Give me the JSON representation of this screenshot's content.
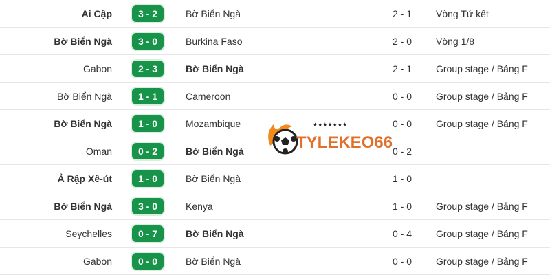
{
  "matches": [
    {
      "home": "Ai Cập",
      "score": "3 - 2",
      "away": "Bờ Biển Ngà",
      "agg": "2 - 1",
      "stage": "Vòng Tứ kết",
      "bold": "home"
    },
    {
      "home": "Bờ Biển Ngà",
      "score": "3 - 0",
      "away": "Burkina Faso",
      "agg": "2 - 0",
      "stage": "Vòng 1/8",
      "bold": "home"
    },
    {
      "home": "Gabon",
      "score": "2 - 3",
      "away": "Bờ Biển Ngà",
      "agg": "2 - 1",
      "stage": "Group stage / Bảng F",
      "bold": "away"
    },
    {
      "home": "Bờ Biển Ngà",
      "score": "1 - 1",
      "away": "Cameroon",
      "agg": "0 - 0",
      "stage": "Group stage / Bảng F",
      "bold": ""
    },
    {
      "home": "Bờ Biển Ngà",
      "score": "1 - 0",
      "away": "Mozambique",
      "agg": "0 - 0",
      "stage": "Group stage / Bảng F",
      "bold": "home"
    },
    {
      "home": "Oman",
      "score": "0 - 2",
      "away": "Bờ Biển Ngà",
      "agg": "0 - 2",
      "stage": "",
      "bold": "away"
    },
    {
      "home": "Ả Rập Xê-út",
      "score": "1 - 0",
      "away": "Bờ Biển Ngà",
      "agg": "1 - 0",
      "stage": "",
      "bold": "home"
    },
    {
      "home": "Bờ Biển Ngà",
      "score": "3 - 0",
      "away": "Kenya",
      "agg": "1 - 0",
      "stage": "Group stage / Bảng F",
      "bold": "home"
    },
    {
      "home": "Seychelles",
      "score": "0 - 7",
      "away": "Bờ Biển Ngà",
      "agg": "0 - 4",
      "stage": "Group stage / Bảng F",
      "bold": "away"
    },
    {
      "home": "Gabon",
      "score": "0 - 0",
      "away": "Bờ Biển Ngà",
      "agg": "0 - 0",
      "stage": "Group stage / Bảng F",
      "bold": ""
    }
  ],
  "watermark": {
    "text": "TYLEKEO66",
    "stars": "★★★★★★★"
  },
  "colors": {
    "score_badge": "#17944a",
    "logo_text": "#e0702a"
  }
}
